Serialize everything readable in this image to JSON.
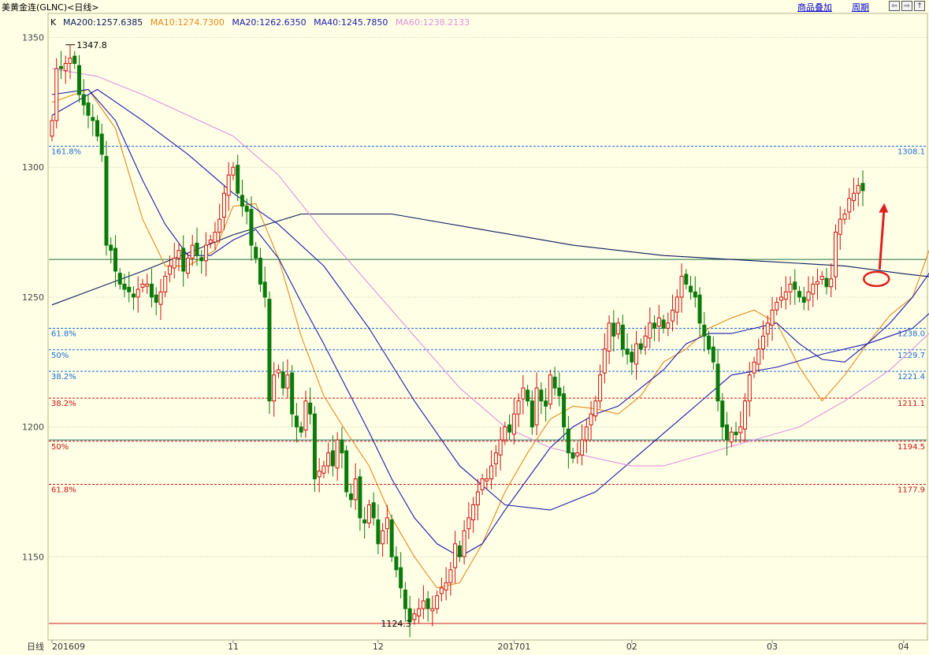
{
  "header": {
    "title": "美黄金连(GLNC)<日线>",
    "overlay_link": "商品叠加",
    "period_link": "周期",
    "nav_buttons": [
      "⇦",
      "⇨",
      "↑"
    ]
  },
  "chart_data": {
    "type": "candlestick",
    "symbol_label": "K",
    "ylim": [
      1124,
      1362
    ],
    "yticks": [
      1150,
      1200,
      1250,
      1300,
      1350
    ],
    "xlabel": "日线",
    "x_ticks": [
      {
        "label": "201609",
        "index": 0
      },
      {
        "label": "11",
        "index": 40
      },
      {
        "label": "12",
        "index": 72
      },
      {
        "label": "201701",
        "index": 102
      },
      {
        "label": "02",
        "index": 128
      },
      {
        "label": "03",
        "index": 159
      },
      {
        "label": "04",
        "index": 188
      }
    ],
    "legend": [
      {
        "name": "MA200",
        "value": "MA200:1257.6385",
        "color": "#0a1a5c"
      },
      {
        "name": "MA10",
        "value": "MA10:1274.7300",
        "color": "#e88a1a"
      },
      {
        "name": "MA20",
        "value": "MA20:1262.6350",
        "color": "#1a1ab0"
      },
      {
        "name": "MA40",
        "value": "MA40:1245.7850",
        "color": "#1a1ab0"
      },
      {
        "name": "MA60",
        "value": "MA60:1238.2133",
        "color": "#e090e0"
      }
    ],
    "annotations": {
      "high": {
        "label": "1347.8",
        "value": 1347.8,
        "index": 3
      },
      "low": {
        "label": "1124.3",
        "value": 1124.3,
        "index": 80
      }
    },
    "fib_lines": [
      {
        "label": "161.8%",
        "value": 1308.1,
        "right": "1308.1",
        "color": "#1a6ad6"
      },
      {
        "label": "61.8%",
        "value": 1238.0,
        "right": "1238.0",
        "color": "#1a6ad6"
      },
      {
        "label": "50%",
        "value": 1229.7,
        "right": "1229.7",
        "color": "#1a6ad6"
      },
      {
        "label": "38.2%",
        "value": 1221.4,
        "right": "1221.4",
        "color": "#1a6ad6"
      },
      {
        "label": "38.2%",
        "value": 1211.1,
        "right": "1211.1",
        "color": "#cc1010"
      },
      {
        "label": "50%",
        "value": 1194.5,
        "right": "1194.5",
        "color": "#cc1010"
      },
      {
        "label": "61.8%",
        "value": 1177.9,
        "right": "1177.9",
        "color": "#cc1010"
      }
    ],
    "level_lines": [
      {
        "value": 1264.5,
        "color": "#207040"
      },
      {
        "value": 1195.0,
        "color": "#207070"
      },
      {
        "value": 1124.3,
        "color": "#cc2020"
      }
    ],
    "closes": [
      1318,
      1338,
      1338,
      1340,
      1342,
      1340,
      1328,
      1324,
      1320,
      1318,
      1312,
      1305,
      1270,
      1268,
      1260,
      1255,
      1253,
      1252,
      1250,
      1253,
      1255,
      1255,
      1250,
      1248,
      1252,
      1258,
      1262,
      1265,
      1268,
      1260,
      1265,
      1270,
      1266,
      1264,
      1270,
      1272,
      1275,
      1280,
      1290,
      1297,
      1300,
      1290,
      1285,
      1283,
      1270,
      1265,
      1255,
      1250,
      1210,
      1220,
      1222,
      1215,
      1220,
      1205,
      1200,
      1198,
      1210,
      1205,
      1180,
      1183,
      1185,
      1190,
      1185,
      1195,
      1190,
      1175,
      1172,
      1180,
      1165,
      1163,
      1170,
      1165,
      1155,
      1160,
      1165,
      1150,
      1145,
      1138,
      1130,
      1125,
      1128,
      1130,
      1133,
      1130,
      1130,
      1135,
      1138,
      1140,
      1145,
      1155,
      1150,
      1160,
      1165,
      1170,
      1175,
      1180,
      1180,
      1185,
      1190,
      1195,
      1200,
      1198,
      1205,
      1210,
      1215,
      1210,
      1200,
      1215,
      1210,
      1208,
      1220,
      1215,
      1212,
      1200,
      1190,
      1188,
      1190,
      1195,
      1200,
      1205,
      1210,
      1220,
      1230,
      1240,
      1235,
      1240,
      1230,
      1228,
      1225,
      1232,
      1230,
      1235,
      1240,
      1238,
      1242,
      1238,
      1240,
      1245,
      1250,
      1258,
      1255,
      1252,
      1250,
      1240,
      1235,
      1230,
      1225,
      1210,
      1200,
      1195,
      1198,
      1197,
      1200,
      1210,
      1220,
      1225,
      1230,
      1235,
      1240,
      1245,
      1248,
      1250,
      1252,
      1255,
      1253,
      1250,
      1248,
      1252,
      1255,
      1256,
      1258,
      1254,
      1257,
      1275,
      1280,
      1282,
      1288,
      1290,
      1293,
      1291
    ],
    "moving_averages": [
      {
        "name": "MA200",
        "color": "#0a1a5c",
        "points": [
          [
            0,
            1247
          ],
          [
            20,
            1260
          ],
          [
            40,
            1274
          ],
          [
            55,
            1282
          ],
          [
            75,
            1282
          ],
          [
            95,
            1276
          ],
          [
            115,
            1270
          ],
          [
            135,
            1266
          ],
          [
            155,
            1264
          ],
          [
            175,
            1262
          ],
          [
            188,
            1259
          ],
          [
            195,
            1257.6
          ]
        ]
      },
      {
        "name": "MA10",
        "color": "#e88a1a",
        "points": [
          [
            0,
            1325
          ],
          [
            8,
            1330
          ],
          [
            14,
            1315
          ],
          [
            20,
            1280
          ],
          [
            25,
            1262
          ],
          [
            30,
            1262
          ],
          [
            36,
            1268
          ],
          [
            40,
            1285
          ],
          [
            45,
            1286
          ],
          [
            50,
            1265
          ],
          [
            55,
            1235
          ],
          [
            60,
            1212
          ],
          [
            65,
            1198
          ],
          [
            70,
            1185
          ],
          [
            75,
            1165
          ],
          [
            80,
            1150
          ],
          [
            85,
            1138
          ],
          [
            90,
            1140
          ],
          [
            95,
            1155
          ],
          [
            100,
            1175
          ],
          [
            105,
            1190
          ],
          [
            110,
            1203
          ],
          [
            115,
            1208
          ],
          [
            120,
            1207
          ],
          [
            125,
            1205
          ],
          [
            130,
            1212
          ],
          [
            135,
            1225
          ],
          [
            140,
            1230
          ],
          [
            145,
            1238
          ],
          [
            150,
            1242
          ],
          [
            155,
            1245
          ],
          [
            160,
            1240
          ],
          [
            165,
            1223
          ],
          [
            170,
            1210
          ],
          [
            175,
            1220
          ],
          [
            180,
            1232
          ],
          [
            185,
            1243
          ],
          [
            190,
            1250
          ],
          [
            195,
            1274.7
          ]
        ]
      },
      {
        "name": "MA20",
        "color": "#1a1ab0",
        "points": [
          [
            0,
            1328
          ],
          [
            8,
            1330
          ],
          [
            14,
            1318
          ],
          [
            20,
            1295
          ],
          [
            25,
            1278
          ],
          [
            30,
            1266
          ],
          [
            35,
            1266
          ],
          [
            40,
            1272
          ],
          [
            45,
            1276
          ],
          [
            50,
            1265
          ],
          [
            55,
            1248
          ],
          [
            60,
            1232
          ],
          [
            65,
            1215
          ],
          [
            70,
            1198
          ],
          [
            75,
            1180
          ],
          [
            80,
            1165
          ],
          [
            85,
            1155
          ],
          [
            90,
            1150
          ],
          [
            95,
            1155
          ],
          [
            100,
            1168
          ],
          [
            105,
            1180
          ],
          [
            110,
            1192
          ],
          [
            115,
            1200
          ],
          [
            120,
            1205
          ],
          [
            125,
            1208
          ],
          [
            130,
            1215
          ],
          [
            135,
            1222
          ],
          [
            140,
            1232
          ],
          [
            145,
            1236
          ],
          [
            150,
            1236
          ],
          [
            155,
            1238
          ],
          [
            160,
            1240
          ],
          [
            165,
            1232
          ],
          [
            170,
            1226
          ],
          [
            175,
            1225
          ],
          [
            180,
            1232
          ],
          [
            185,
            1240
          ],
          [
            190,
            1250
          ],
          [
            195,
            1262.6
          ]
        ]
      },
      {
        "name": "MA40",
        "color": "#1a1ab0",
        "points": [
          [
            0,
            1320
          ],
          [
            10,
            1330
          ],
          [
            20,
            1318
          ],
          [
            30,
            1305
          ],
          [
            40,
            1290
          ],
          [
            50,
            1278
          ],
          [
            60,
            1262
          ],
          [
            70,
            1238
          ],
          [
            80,
            1210
          ],
          [
            90,
            1185
          ],
          [
            100,
            1170
          ],
          [
            110,
            1168
          ],
          [
            120,
            1175
          ],
          [
            130,
            1190
          ],
          [
            140,
            1205
          ],
          [
            150,
            1220
          ],
          [
            160,
            1223
          ],
          [
            170,
            1228
          ],
          [
            180,
            1232
          ],
          [
            190,
            1238
          ],
          [
            195,
            1245.8
          ]
        ]
      },
      {
        "name": "MA60",
        "color": "#e090e0",
        "points": [
          [
            0,
            1338
          ],
          [
            10,
            1335
          ],
          [
            20,
            1328
          ],
          [
            30,
            1320
          ],
          [
            40,
            1312
          ],
          [
            50,
            1297
          ],
          [
            60,
            1275
          ],
          [
            70,
            1255
          ],
          [
            80,
            1235
          ],
          [
            90,
            1215
          ],
          [
            100,
            1200
          ],
          [
            110,
            1192
          ],
          [
            120,
            1188
          ],
          [
            128,
            1185
          ],
          [
            135,
            1185
          ],
          [
            145,
            1190
          ],
          [
            155,
            1195
          ],
          [
            165,
            1200
          ],
          [
            175,
            1210
          ],
          [
            185,
            1222
          ],
          [
            195,
            1238.2
          ]
        ]
      }
    ]
  }
}
